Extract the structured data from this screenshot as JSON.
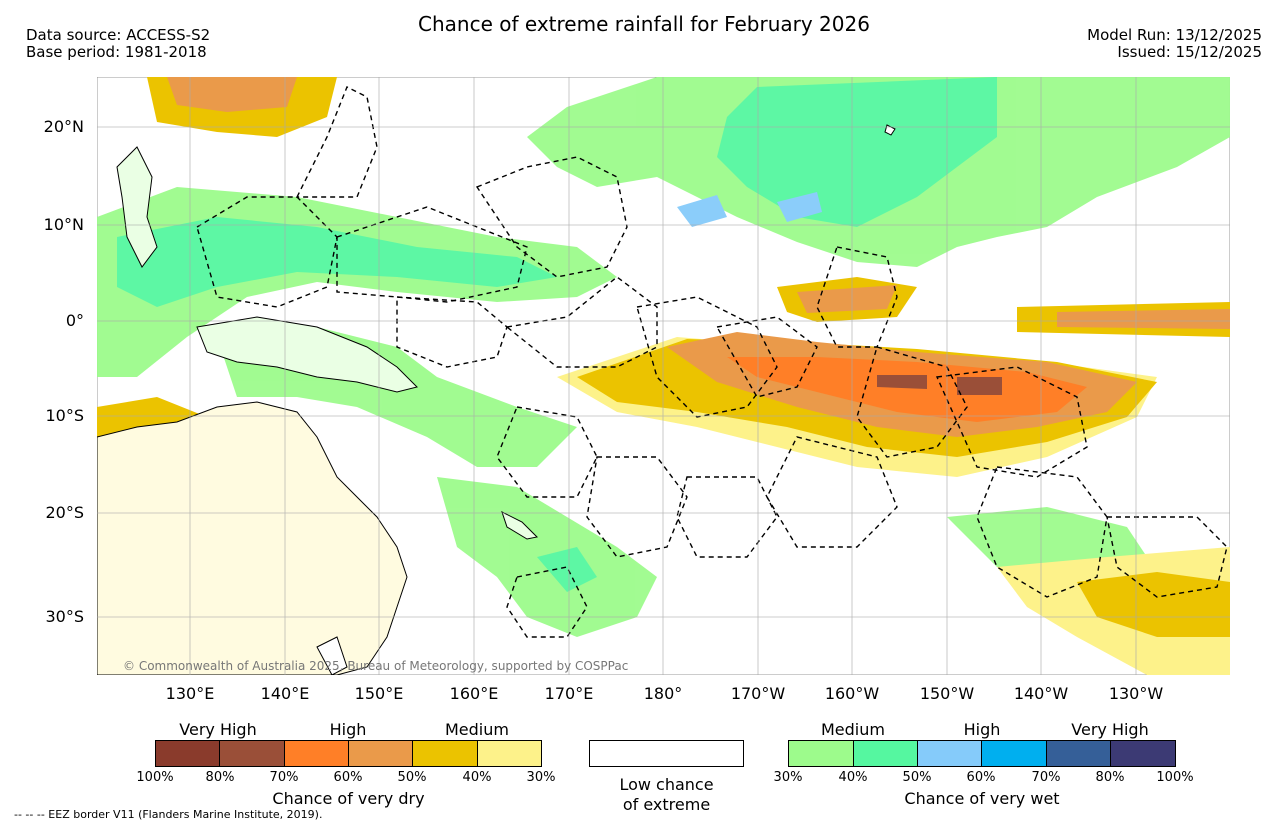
{
  "title": "Chance of extreme rainfall for February 2026",
  "source": {
    "data_source": "Data source: ACCESS-S2",
    "base_period": "Base period: 1981-2018"
  },
  "run": {
    "model_run": "Model Run: 13/12/2025",
    "issued": "Issued: 15/12/2025"
  },
  "map": {
    "lat_labels": [
      "20°N",
      "10°N",
      "0°",
      "10°S",
      "20°S",
      "30°S"
    ],
    "lon_labels": [
      "130°E",
      "140°E",
      "150°E",
      "160°E",
      "170°E",
      "180°",
      "170°W",
      "160°W",
      "150°W",
      "140°W",
      "130°W"
    ],
    "copyright": "© Commonwealth of Australia 2025, Bureau of Meteorology, supported by COSPPac"
  },
  "colors": {
    "dry_very_high_100": "#8a3b2c",
    "dry_very_high_80": "#9a4f38",
    "dry_high_70": "#ff7f27",
    "dry_high_60": "#ea9a4a",
    "dry_medium_50": "#ebc300",
    "dry_medium_40": "#fdf28a",
    "wet_medium_30": "#9dfb8c",
    "wet_medium_40": "#55f7a0",
    "wet_high_50": "#85cbfa",
    "wet_high_60": "#00afef",
    "wet_very_high_70": "#355f98",
    "wet_very_high_80": "#3c3a74",
    "land": "#ffffff"
  },
  "legend": {
    "dry": {
      "levels": [
        "Very High",
        "High",
        "Medium"
      ],
      "ticks": [
        "100%",
        "80%",
        "70%",
        "60%",
        "50%",
        "40%",
        "30%"
      ],
      "caption": "Chance of very dry"
    },
    "low": {
      "caption_line1": "Low chance",
      "caption_line2": "of extreme"
    },
    "wet": {
      "levels": [
        "Medium",
        "High",
        "Very High"
      ],
      "ticks": [
        "30%",
        "40%",
        "50%",
        "60%",
        "70%",
        "80%",
        "100%"
      ],
      "caption": "Chance of very wet"
    }
  },
  "footnote": "-- -- -- EEZ border V11 (Flanders Marine Institute, 2019)."
}
